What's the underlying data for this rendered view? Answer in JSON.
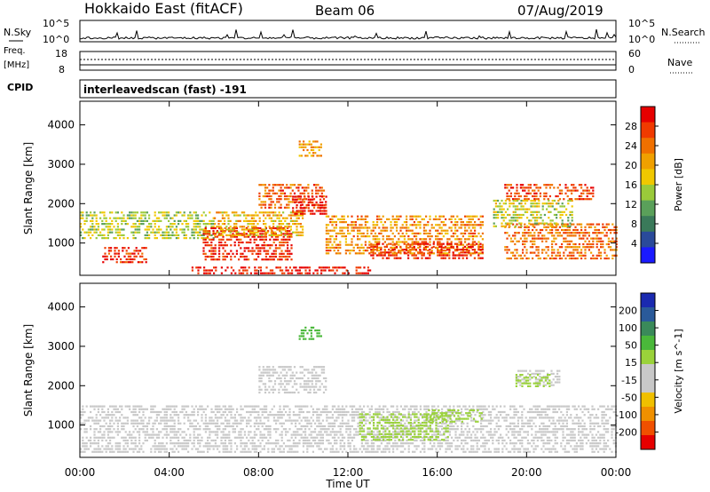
{
  "header": {
    "title": "Hokkaido East (fitACF)",
    "beam": "Beam 06",
    "date": "07/Aug/2019"
  },
  "summary": {
    "nsky_label": "N.Sky",
    "nsearch_label": "N.Search",
    "log_top": "10^5",
    "log_bottom": "10^0",
    "freq_label_1": "Freq.",
    "freq_label_2": "[MHz]",
    "freq_top": "18",
    "freq_bottom": "8",
    "nave_label": "Nave",
    "nave_top": "60",
    "nave_bottom": "0",
    "cpid_label": "CPID",
    "cpid_value": "interleavedscan (fast) -191"
  },
  "colors": {
    "power_scale": [
      "#1a1aff",
      "#2a4a9a",
      "#3a7a5a",
      "#5aa05a",
      "#9aca3a",
      "#f0c800",
      "#f0a000",
      "#f07000",
      "#f03a00",
      "#e60000"
    ],
    "velocity_scale": [
      "#e60000",
      "#f05000",
      "#f09000",
      "#f0c000",
      "#c8c8c8",
      "#c8c8c8",
      "#9ad23a",
      "#4ab83a",
      "#3a8a5a",
      "#2a5a9a",
      "#1a2ab0"
    ],
    "ground_scatter": "#c8c8c8"
  },
  "chart_data": [
    {
      "type": "heatmap",
      "title": "",
      "xlabel": "",
      "ylabel": "Slant Range [km]",
      "x_ticks": [
        "00:00",
        "04:00",
        "08:00",
        "12:00",
        "16:00",
        "20:00",
        "00:00"
      ],
      "y_ticks": [
        "1000",
        "2000",
        "3000",
        "4000"
      ],
      "ylim": [
        180,
        4600
      ],
      "xlim_hours": [
        0,
        24
      ],
      "colorbar": {
        "label": "Power [dB]",
        "ticks": [
          "28",
          "24",
          "20",
          "16",
          "12",
          "8",
          "4"
        ],
        "range": [
          0,
          30
        ]
      },
      "regions": [
        {
          "t0": 0.0,
          "t1": 6.0,
          "r0": 1100,
          "r1": 1800,
          "v": 14
        },
        {
          "t0": 1.0,
          "t1": 3.0,
          "r0": 500,
          "r1": 900,
          "v": 27
        },
        {
          "t0": 5.5,
          "t1": 9.5,
          "r0": 600,
          "r1": 1400,
          "v": 27
        },
        {
          "t0": 6.0,
          "t1": 10.0,
          "r0": 1200,
          "r1": 1800,
          "v": 18
        },
        {
          "t0": 8.0,
          "t1": 11.0,
          "r0": 1900,
          "r1": 2500,
          "v": 24
        },
        {
          "t0": 9.5,
          "t1": 11.0,
          "r0": 1700,
          "r1": 2200,
          "v": 29
        },
        {
          "t0": 9.8,
          "t1": 10.8,
          "r0": 3200,
          "r1": 3600,
          "v": 20
        },
        {
          "t0": 11.0,
          "t1": 18.0,
          "r0": 700,
          "r1": 1700,
          "v": 21
        },
        {
          "t0": 13.0,
          "t1": 18.0,
          "r0": 600,
          "r1": 1000,
          "v": 27
        },
        {
          "t0": 5.0,
          "t1": 13.0,
          "r0": 200,
          "r1": 400,
          "v": 28
        },
        {
          "t0": 19.0,
          "t1": 23.0,
          "r0": 2100,
          "r1": 2500,
          "v": 25
        },
        {
          "t0": 19.0,
          "t1": 24.0,
          "r0": 600,
          "r1": 1500,
          "v": 23
        },
        {
          "t0": 18.5,
          "t1": 22.0,
          "r0": 1400,
          "r1": 2100,
          "v": 15
        }
      ]
    },
    {
      "type": "heatmap",
      "title": "",
      "xlabel": "Time UT",
      "ylabel": "Slant Range [km]",
      "x_ticks": [
        "00:00",
        "04:00",
        "08:00",
        "12:00",
        "16:00",
        "20:00",
        "00:00"
      ],
      "y_ticks": [
        "1000",
        "2000",
        "3000",
        "4000"
      ],
      "ylim": [
        180,
        4600
      ],
      "xlim_hours": [
        0,
        24
      ],
      "colorbar": {
        "label": "Velocity [m s^-1]",
        "ticks": [
          "200",
          "100",
          "50",
          "15",
          "-15",
          "-50",
          "-100",
          "-200"
        ],
        "range": [
          -250,
          250
        ]
      },
      "regions": [
        {
          "t0": 0.0,
          "t1": 24.0,
          "r0": 300,
          "r1": 1500,
          "v": 0
        },
        {
          "t0": 8.0,
          "t1": 11.0,
          "r0": 1800,
          "r1": 2500,
          "v": 0
        },
        {
          "t0": 9.8,
          "t1": 10.8,
          "r0": 3200,
          "r1": 3500,
          "v": 80
        },
        {
          "t0": 12.5,
          "t1": 16.5,
          "r0": 600,
          "r1": 1300,
          "v": 40
        },
        {
          "t0": 15.5,
          "t1": 18.0,
          "r0": 1100,
          "r1": 1400,
          "v": 40
        },
        {
          "t0": 19.5,
          "t1": 21.5,
          "r0": 2000,
          "r1": 2400,
          "v": 0
        },
        {
          "t0": 19.5,
          "t1": 21.0,
          "r0": 2000,
          "r1": 2300,
          "v": 40
        }
      ]
    }
  ]
}
